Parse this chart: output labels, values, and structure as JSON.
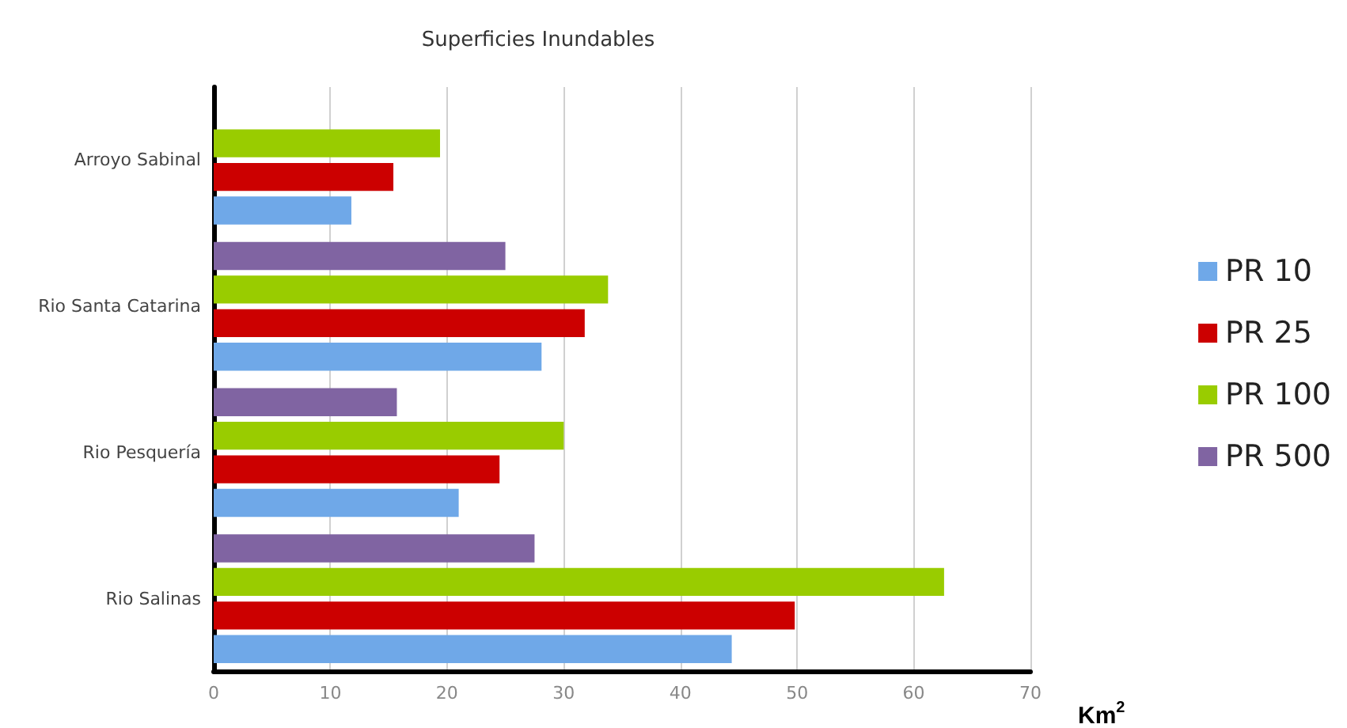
{
  "chart_data": {
    "type": "bar",
    "orientation": "horizontal",
    "title": "Superficies Inundables",
    "xlabel": "Km$^{2}$",
    "categories": [
      "Arroyo Sabinal",
      "Rio Santa Catarina",
      "Rio Pesquería",
      "Rio Salinas"
    ],
    "series": [
      {
        "name": "PR 10",
        "color": "#6fa8e8",
        "values": [
          11.8,
          28.1,
          21.0,
          44.4
        ]
      },
      {
        "name": "PR 25",
        "color": "#cc0000",
        "values": [
          15.4,
          31.8,
          24.5,
          49.8
        ]
      },
      {
        "name": "PR 100",
        "color": "#99cc00",
        "values": [
          19.4,
          33.8,
          30.0,
          62.6
        ]
      },
      {
        "name": "PR 500",
        "color": "#8064a2",
        "values": [
          null,
          25.0,
          15.7,
          27.5
        ]
      }
    ],
    "xlim": [
      0,
      70
    ],
    "xticks": [
      0,
      10,
      20,
      30,
      40,
      50,
      60,
      70
    ],
    "grid": "x",
    "legend": "right"
  }
}
